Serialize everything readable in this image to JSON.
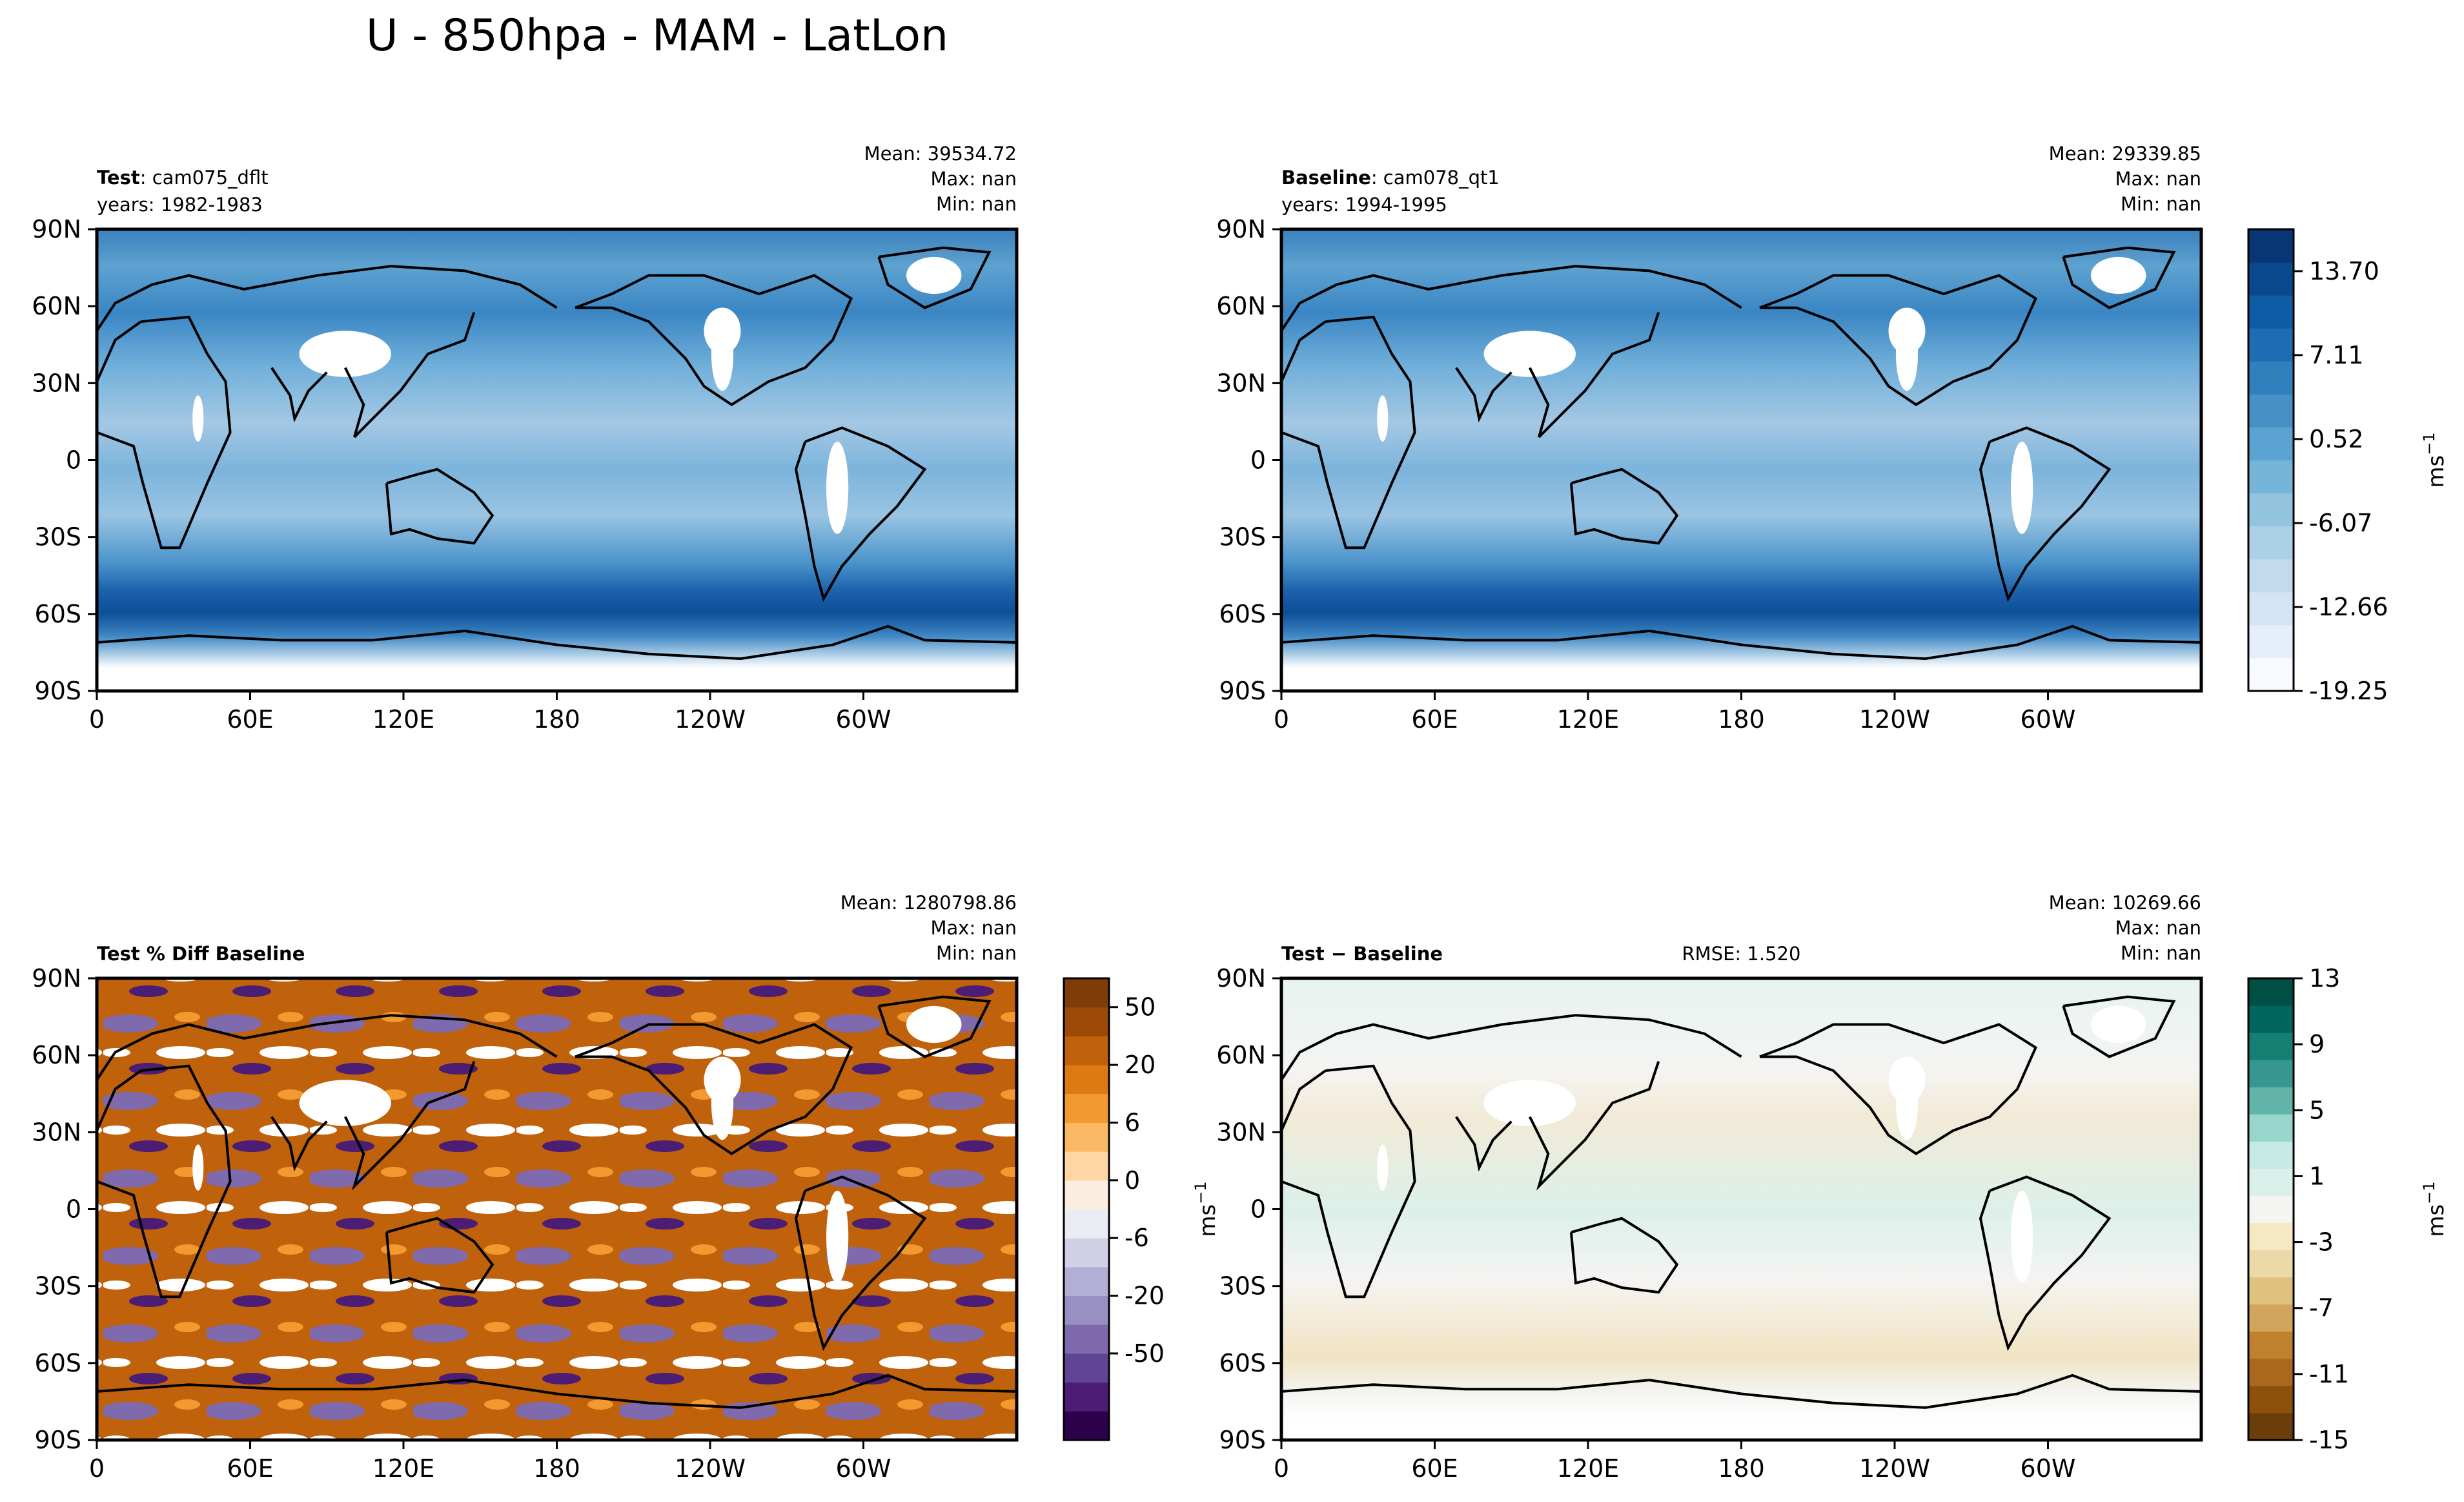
{
  "chart_data": {
    "type": "heatmap",
    "title": "U - 850hpa - MAM - LatLon",
    "panels": [
      {
        "id": "test",
        "label_bold": "Test",
        "label_rest": ": cam075_dflt",
        "years": "years: 1982-1983",
        "stats": {
          "mean": "Mean: 39534.72",
          "max": "Max:   nan",
          "min": "Min:   nan"
        },
        "rmse": "",
        "xticks": [
          "0",
          "60E",
          "120E",
          "180",
          "120W",
          "60W"
        ],
        "yticks": [
          "90N",
          "60N",
          "30N",
          "0",
          "30S",
          "60S",
          "90S"
        ],
        "colormap": "blues",
        "colorbar": null
      },
      {
        "id": "baseline",
        "label_bold": "Baseline",
        "label_rest": ": cam078_qt1",
        "years": "years: 1994-1995",
        "stats": {
          "mean": "Mean: 29339.85",
          "max": "Max:   nan",
          "min": "Min:   nan"
        },
        "rmse": "",
        "xticks": [
          "0",
          "60E",
          "120E",
          "180",
          "120W",
          "60W"
        ],
        "yticks": [
          "90N",
          "60N",
          "30N",
          "0",
          "30S",
          "60S",
          "90S"
        ],
        "colormap": "blues",
        "colorbar": {
          "ticks": [
            "13.70",
            "7.11",
            "0.52",
            "-6.07",
            "-12.66",
            "-19.25"
          ],
          "tick_values": [
            13.7,
            7.11,
            0.52,
            -6.07,
            -12.66,
            -19.25
          ],
          "range": [
            -19.25,
            16.99
          ],
          "label": "ms",
          "label_sup": "−1",
          "colors": [
            "#f7fbff",
            "#e5eff9",
            "#d4e4f4",
            "#c2d9ee",
            "#acd0e6",
            "#92c4de",
            "#75b4d8",
            "#5ba3d0",
            "#4591c6",
            "#3080bd",
            "#1e6db2",
            "#0f5ca6",
            "#08488d",
            "#083674"
          ]
        }
      },
      {
        "id": "pct_diff",
        "label_bold": "Test % Diff Baseline",
        "label_rest": "",
        "years": "",
        "stats": {
          "mean": "Mean: 1280798.86",
          "max": "Max:   nan",
          "min": "Min:   nan"
        },
        "rmse": "",
        "xticks": [
          "0",
          "60E",
          "120E",
          "180",
          "120W",
          "60W"
        ],
        "yticks": [
          "90N",
          "60N",
          "30N",
          "0",
          "30S",
          "60S",
          "90S"
        ],
        "colormap": "PuOr",
        "colorbar": {
          "ticks": [
            "50",
            "20",
            "6",
            "0",
            "-6",
            "-20",
            "-50"
          ],
          "tick_index": [
            1,
            3,
            5,
            7,
            9,
            11,
            13
          ],
          "levels": 16,
          "label": "ms",
          "label_sup": "−1",
          "colors": [
            "#2d004b",
            "#4b1d74",
            "#604595",
            "#7e6aad",
            "#988fc2",
            "#b3aed4",
            "#d1d0e7",
            "#eaebf3",
            "#fbede0",
            "#fdd6a4",
            "#fcb965",
            "#f29a30",
            "#de7a11",
            "#c0610b",
            "#9c4a07",
            "#7f3b08"
          ]
        }
      },
      {
        "id": "difference",
        "label_bold": "Test − Baseline",
        "label_rest": "",
        "years": "",
        "stats": {
          "mean": "Mean: 10269.66",
          "max": "Max:   nan",
          "min": "Min:   nan"
        },
        "rmse": "RMSE: 1.520",
        "xticks": [
          "0",
          "60E",
          "120E",
          "180",
          "120W",
          "60W"
        ],
        "yticks": [
          "90N",
          "60N",
          "30N",
          "0",
          "30S",
          "60S",
          "90S"
        ],
        "colormap": "BrBG",
        "colorbar": {
          "ticks": [
            "13",
            "9",
            "5",
            "1",
            "-3",
            "-7",
            "-11",
            "-15"
          ],
          "tick_values": [
            13,
            9,
            5,
            1,
            -3,
            -7,
            -11,
            -15
          ],
          "range": [
            -15,
            13
          ],
          "label": "ms",
          "label_sup": "−1",
          "colors": [
            "#6b3d0a",
            "#8c510a",
            "#a9681d",
            "#bf812d",
            "#d2a55d",
            "#dfc27d",
            "#ebd9a8",
            "#f6e8c3",
            "#f4f4f2",
            "#dcf0eb",
            "#c7eae5",
            "#98d6cc",
            "#62b4a9",
            "#35978f",
            "#138073",
            "#01665e",
            "#004f45"
          ]
        }
      }
    ]
  }
}
